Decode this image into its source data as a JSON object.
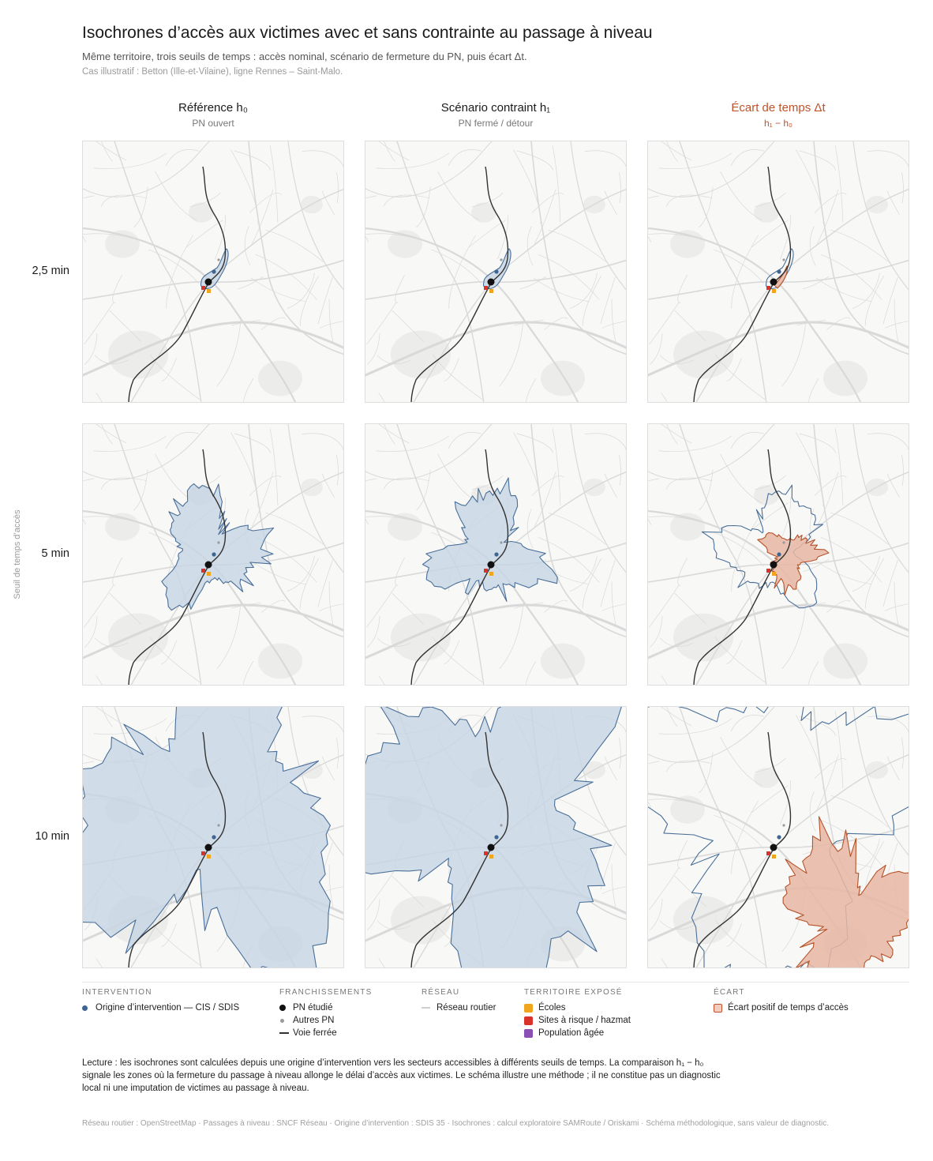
{
  "title": "Isochrones d’accès aux victimes avec et sans contrainte au passage à niveau",
  "subtitle": "Même territoire, trois seuils de temps : accès nominal, scénario de fermeture du PN, puis écart Δt.",
  "case": "Cas illustratif : Betton (Ille-et-Vilaine), ligne Rennes – Saint-Malo.",
  "y_axis_label": "Seuil de temps d’accès",
  "columns": [
    {
      "title": "Référence h₀",
      "subtitle": "PN ouvert"
    },
    {
      "title": "Scénario contraint h₁",
      "subtitle": "PN fermé / détour"
    },
    {
      "title": "Écart de temps Δt",
      "subtitle": "h₁ − h₀"
    }
  ],
  "rows": [
    {
      "label": "2,5 min"
    },
    {
      "label": "5 min"
    },
    {
      "label": "10 min"
    }
  ],
  "legend": {
    "intervention": {
      "title": "INTERVENTION",
      "items": [
        "Origine d’intervention — CIS / SDIS"
      ]
    },
    "franchissements": {
      "title": "FRANCHISSEMENTS",
      "items": [
        "PN étudié",
        "Autres PN",
        "Voie ferrée"
      ]
    },
    "reseau": {
      "title": "RÉSEAU",
      "items": [
        "Réseau routier"
      ]
    },
    "territoire": {
      "title": "TERRITOIRE EXPOSÉ",
      "items": [
        "Écoles",
        "Sites à risque / hazmat",
        "Population âgée"
      ]
    },
    "ecart": {
      "title": "ÉCART",
      "items": [
        "Écart positif de temps d’accès"
      ]
    }
  },
  "colors": {
    "iso_fill": "#c6d4e3",
    "iso_stroke": "#4a6f99",
    "delta_fill": "#e8b7a3",
    "delta_stroke": "#b5532a",
    "origin": "#3f6690",
    "pn_studied": "#111111",
    "other_pn": "#9a9a9a",
    "rail": "#333333",
    "road": "#d9d9d9",
    "school": "#f0a51c",
    "hazmat": "#d9322b",
    "elderly": "#8a4fb3",
    "accent": "#c0522b"
  },
  "note": "Lecture : les isochrones sont calculées depuis une origine d’intervention vers les secteurs accessibles à différents seuils de temps. La comparaison h₁ − h₀ signale les zones où la fermeture du passage à niveau allonge le délai d’accès aux victimes. Le schéma illustre une méthode ; il ne constitue pas un diagnostic local ni une imputation de victimes au passage à niveau.",
  "source": "Réseau routier : OpenStreetMap · Passages à niveau : SNCF Réseau · Origine d’intervention : SDIS 35 · Isochrones : calcul exploratoire SAMRoute / Oriskami · Schéma méthodologique, sans valeur de diagnostic."
}
